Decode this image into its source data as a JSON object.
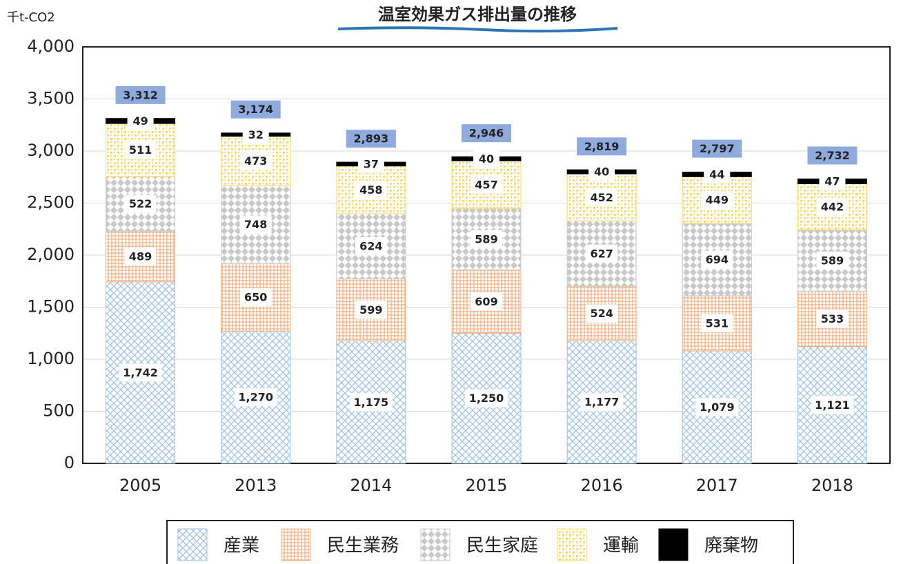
{
  "chart_data": {
    "type": "stacked_bar",
    "title": "温室効果ガス排出量の推移",
    "y_axis_label": "千t-CO2",
    "categories": [
      "2005",
      "2013",
      "2014",
      "2015",
      "2016",
      "2017",
      "2018"
    ],
    "series": [
      {
        "name": "産業",
        "color": "#9dc3e6",
        "values": [
          1742,
          1270,
          1175,
          1250,
          1177,
          1079,
          1121
        ],
        "value_labels": [
          "1,742",
          "1,270",
          "1,175",
          "1,250",
          "1,177",
          "1,079",
          "1,121"
        ]
      },
      {
        "name": "民生業務",
        "color": "#f4b183",
        "values": [
          489,
          650,
          599,
          609,
          524,
          531,
          533
        ]
      },
      {
        "name": "民生家庭",
        "color": "#c9c9c9",
        "values": [
          522,
          748,
          624,
          589,
          627,
          694,
          589
        ]
      },
      {
        "name": "運輸",
        "color": "#ffd966",
        "values": [
          511,
          473,
          458,
          457,
          452,
          449,
          442
        ]
      },
      {
        "name": "廃棄物",
        "color": "#000000",
        "values": [
          49,
          32,
          37,
          40,
          40,
          44,
          47
        ]
      }
    ],
    "totals": [
      3312,
      3174,
      2893,
      2946,
      2819,
      2797,
      2732
    ],
    "total_labels": [
      "3,312",
      "3,174",
      "2,893",
      "2,946",
      "2,819",
      "2,797",
      "2,732"
    ],
    "total_color": "#8faadc",
    "ylim": [
      0,
      4000
    ],
    "yticks": [
      0,
      500,
      {
        "value": 1000,
        "label": "1,000"
      },
      {
        "value": 1500,
        "label": "1,500"
      },
      {
        "value": 2000,
        "label": "2,000"
      },
      {
        "value": 2500,
        "label": "2,500"
      },
      {
        "value": 3000,
        "label": "3,000"
      },
      {
        "value": 3500,
        "label": "3,500"
      },
      {
        "value": 4000,
        "label": "4,000"
      }
    ],
    "grid": true
  }
}
